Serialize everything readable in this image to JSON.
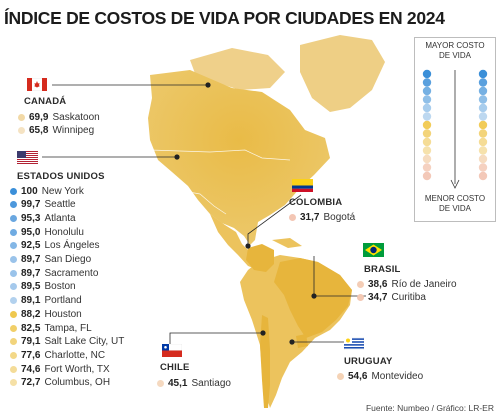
{
  "title": "ÍNDICE DE COSTOS DE VIDA POR CIUDADES EN 2024",
  "source": "Fuente: Numbeo / Gráfico: LR-ER",
  "legend": {
    "top_label_line1": "MAYOR COSTO",
    "top_label_line2": "DE VIDA",
    "bottom_label_line1": "MENOR COSTO",
    "bottom_label_line2": "DE VIDA",
    "gradient_dots": [
      "#3b8fd8",
      "#5aa0de",
      "#75b0e3",
      "#8fbfe8",
      "#a8cded",
      "#bdd8f0",
      "#f2cc58",
      "#f3d47a",
      "#f5dc95",
      "#f6e2ac",
      "#f6dcc0",
      "#f5d1c0",
      "#f3c8b8"
    ]
  },
  "countries": {
    "canada": {
      "label": "CANADÁ",
      "cities": [
        {
          "value": "69,9",
          "name": "Saskatoon",
          "color": "#f2d9a6"
        },
        {
          "value": "65,8",
          "name": "Winnipeg",
          "color": "#f5e3c3"
        }
      ]
    },
    "usa": {
      "label": "ESTADOS UNIDOS",
      "cities": [
        {
          "value": "100",
          "name": "New York",
          "color": "#3a8fd9"
        },
        {
          "value": "99,7",
          "name": "Seattle",
          "color": "#4d98dc"
        },
        {
          "value": "95,3",
          "name": "Atlanta",
          "color": "#6aa7e0"
        },
        {
          "value": "95,0",
          "name": "Honolulu",
          "color": "#6fabe2"
        },
        {
          "value": "92,5",
          "name": "Los Ángeles",
          "color": "#84b7e6"
        },
        {
          "value": "89,7",
          "name": "San Diego",
          "color": "#9ac3ea"
        },
        {
          "value": "89,7",
          "name": "Sacramento",
          "color": "#9ac3ea"
        },
        {
          "value": "89,5",
          "name": "Boston",
          "color": "#a5c9ec"
        },
        {
          "value": "89,1",
          "name": "Portland",
          "color": "#b2d1ee"
        },
        {
          "value": "88,2",
          "name": "Houston",
          "color": "#efc84e"
        },
        {
          "value": "82,5",
          "name": "Tampa, FL",
          "color": "#f1cf68"
        },
        {
          "value": "79,1",
          "name": "Salt Lake City, UT",
          "color": "#f2d47c"
        },
        {
          "value": "77,6",
          "name": "Charlotte, NC",
          "color": "#f3d888"
        },
        {
          "value": "74,6",
          "name": "Fort Worth, TX",
          "color": "#f4dc98"
        },
        {
          "value": "72,7",
          "name": "Columbus, OH",
          "color": "#f5e0a6"
        }
      ]
    },
    "colombia": {
      "label": "COLOMBIA",
      "cities": [
        {
          "value": "31,7",
          "name": "Bogotá",
          "color": "#f3c6b4"
        }
      ]
    },
    "brasil": {
      "label": "BRASIL",
      "cities": [
        {
          "value": "38,6",
          "name": "Río de Janeiro",
          "color": "#f4cdb6"
        },
        {
          "value": "34,7",
          "name": "Curitiba",
          "color": "#f3c8b3"
        }
      ]
    },
    "chile": {
      "label": "CHILE",
      "cities": [
        {
          "value": "45,1",
          "name": "Santiago",
          "color": "#f5d9c0"
        }
      ]
    },
    "uruguay": {
      "label": "URUGUAY",
      "cities": [
        {
          "value": "54,6",
          "name": "Montevideo",
          "color": "#f5d3b6"
        }
      ]
    }
  }
}
